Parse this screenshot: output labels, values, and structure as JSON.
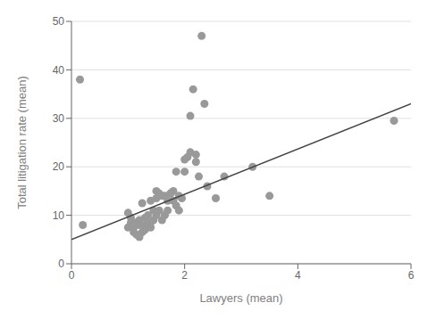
{
  "chart_data": {
    "type": "scatter",
    "xlabel": "Lawyers (mean)",
    "ylabel": "Total litigation rate (mean)",
    "xlim": [
      0,
      6
    ],
    "ylim": [
      0,
      50
    ],
    "xticks": [
      0,
      2,
      4,
      6
    ],
    "yticks": [
      0,
      10,
      20,
      30,
      40,
      50
    ],
    "grid": "y",
    "series": [
      {
        "type": "scatter",
        "color": "#999999",
        "x": [
          0.15,
          0.2,
          1.0,
          1.0,
          1.05,
          1.05,
          1.1,
          1.1,
          1.1,
          1.15,
          1.15,
          1.2,
          1.2,
          1.2,
          1.25,
          1.25,
          1.3,
          1.3,
          1.3,
          1.35,
          1.35,
          1.4,
          1.4,
          1.4,
          1.45,
          1.45,
          1.5,
          1.5,
          1.5,
          1.55,
          1.55,
          1.6,
          1.6,
          1.65,
          1.65,
          1.7,
          1.7,
          1.75,
          1.75,
          1.8,
          1.8,
          1.85,
          1.85,
          1.9,
          1.9,
          1.95,
          2.0,
          2.0,
          2.05,
          2.1,
          2.1,
          2.15,
          2.2,
          2.2,
          2.25,
          2.3,
          2.35,
          2.4,
          2.55,
          2.7,
          3.2,
          3.5,
          5.7
        ],
        "values": [
          38.0,
          8.0,
          7.5,
          10.5,
          8.5,
          9.5,
          6.5,
          7.5,
          8.0,
          6.0,
          8.5,
          5.5,
          8.0,
          9.0,
          6.5,
          12.5,
          7.0,
          8.0,
          9.5,
          8.0,
          10.0,
          7.5,
          8.5,
          13.0,
          9.0,
          11.0,
          10.0,
          13.5,
          15.0,
          11.0,
          14.5,
          9.0,
          14.0,
          10.0,
          14.0,
          11.0,
          13.0,
          14.5,
          14.5,
          13.0,
          15.0,
          12.0,
          19.0,
          11.0,
          14.0,
          13.5,
          19.0,
          21.5,
          22.0,
          23.0,
          30.5,
          36.0,
          21.0,
          22.5,
          18.0,
          47.0,
          33.0,
          16.0,
          13.5,
          18.0,
          20.0,
          14.0,
          29.5
        ]
      },
      {
        "type": "line",
        "color": "#444444",
        "x": [
          0.0,
          6.0
        ],
        "values": [
          5.0,
          33.0
        ]
      }
    ]
  }
}
